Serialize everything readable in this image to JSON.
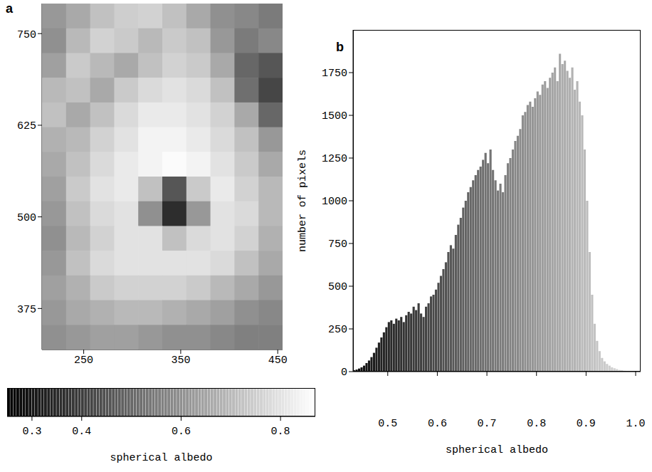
{
  "chart_data": [
    {
      "type": "heatmap",
      "panel": "a",
      "xlim": [
        207,
        455
      ],
      "ylim": [
        319,
        791
      ],
      "xticks": [
        250,
        350,
        450
      ],
      "yticks": [
        375,
        500,
        625,
        750
      ],
      "cells": [
        [
          0.62,
          0.66,
          0.72,
          0.75,
          0.76,
          0.72,
          0.66,
          0.6,
          0.58,
          0.55
        ],
        [
          0.6,
          0.7,
          0.76,
          0.74,
          0.7,
          0.74,
          0.72,
          0.62,
          0.55,
          0.58
        ],
        [
          0.64,
          0.74,
          0.7,
          0.66,
          0.72,
          0.76,
          0.74,
          0.66,
          0.5,
          0.46
        ],
        [
          0.7,
          0.72,
          0.66,
          0.74,
          0.78,
          0.8,
          0.78,
          0.72,
          0.52,
          0.42
        ],
        [
          0.72,
          0.66,
          0.72,
          0.78,
          0.82,
          0.82,
          0.8,
          0.76,
          0.66,
          0.5
        ],
        [
          0.68,
          0.7,
          0.76,
          0.8,
          0.84,
          0.84,
          0.82,
          0.78,
          0.72,
          0.62
        ],
        [
          0.66,
          0.72,
          0.78,
          0.82,
          0.84,
          0.86,
          0.84,
          0.8,
          0.74,
          0.66
        ],
        [
          0.64,
          0.74,
          0.8,
          0.82,
          0.72,
          0.46,
          0.74,
          0.82,
          0.76,
          0.7
        ],
        [
          0.62,
          0.72,
          0.78,
          0.8,
          0.6,
          0.36,
          0.62,
          0.8,
          0.78,
          0.7
        ],
        [
          0.6,
          0.7,
          0.76,
          0.8,
          0.8,
          0.72,
          0.78,
          0.8,
          0.76,
          0.68
        ],
        [
          0.62,
          0.72,
          0.78,
          0.8,
          0.8,
          0.8,
          0.8,
          0.78,
          0.72,
          0.66
        ],
        [
          0.64,
          0.68,
          0.74,
          0.76,
          0.76,
          0.76,
          0.74,
          0.7,
          0.66,
          0.62
        ],
        [
          0.62,
          0.66,
          0.68,
          0.7,
          0.7,
          0.68,
          0.66,
          0.64,
          0.6,
          0.58
        ],
        [
          0.6,
          0.62,
          0.64,
          0.64,
          0.62,
          0.6,
          0.6,
          0.58,
          0.56,
          0.56
        ]
      ],
      "colorbar": {
        "label": "spherical albedo",
        "lim": [
          0.25,
          0.87
        ],
        "ticks": [
          0.3,
          0.4,
          0.6,
          0.8
        ]
      }
    },
    {
      "type": "histogram",
      "panel": "b",
      "xlabel": "spherical albedo",
      "ylabel": "number of pixels",
      "xlim": [
        0.43,
        1.01
      ],
      "ylim": [
        0,
        2000
      ],
      "xticks": [
        0.5,
        0.6,
        0.7,
        0.8,
        0.9,
        {
          "value": 1.0,
          "label": "1.0"
        }
      ],
      "yticks": [
        0,
        250,
        500,
        750,
        1000,
        1250,
        1500,
        1750
      ],
      "bins": [
        0.43,
        0.435,
        0.44,
        0.445,
        0.45,
        0.455,
        0.46,
        0.465,
        0.47,
        0.475,
        0.48,
        0.485,
        0.49,
        0.495,
        0.5,
        0.505,
        0.51,
        0.515,
        0.52,
        0.525,
        0.53,
        0.535,
        0.54,
        0.545,
        0.55,
        0.555,
        0.56,
        0.565,
        0.57,
        0.575,
        0.58,
        0.585,
        0.59,
        0.595,
        0.6,
        0.605,
        0.61,
        0.615,
        0.62,
        0.625,
        0.63,
        0.635,
        0.64,
        0.645,
        0.65,
        0.655,
        0.66,
        0.665,
        0.67,
        0.675,
        0.68,
        0.685,
        0.69,
        0.695,
        0.7,
        0.705,
        0.71,
        0.715,
        0.72,
        0.725,
        0.73,
        0.735,
        0.74,
        0.745,
        0.75,
        0.755,
        0.76,
        0.765,
        0.77,
        0.775,
        0.78,
        0.785,
        0.79,
        0.795,
        0.8,
        0.805,
        0.81,
        0.815,
        0.82,
        0.825,
        0.83,
        0.835,
        0.84,
        0.845,
        0.85,
        0.855,
        0.86,
        0.865,
        0.87,
        0.875,
        0.88,
        0.885,
        0.89,
        0.895,
        0.9,
        0.905,
        0.91,
        0.915,
        0.92,
        0.925,
        0.93,
        0.935,
        0.94,
        0.945,
        0.95,
        0.955,
        0.96,
        0.965,
        0.97,
        0.975,
        0.98,
        0.985,
        0.99,
        0.995,
        1.0,
        1.005,
        1.01
      ],
      "values": [
        8,
        12,
        18,
        25,
        35,
        50,
        65,
        85,
        110,
        140,
        170,
        200,
        230,
        260,
        290,
        300,
        280,
        310,
        300,
        320,
        290,
        330,
        350,
        340,
        380,
        360,
        400,
        340,
        320,
        380,
        400,
        440,
        450,
        480,
        520,
        560,
        600,
        640,
        700,
        740,
        720,
        800,
        860,
        900,
        960,
        1000,
        1050,
        1080,
        1120,
        1150,
        1180,
        1200,
        1240,
        1280,
        1220,
        1300,
        1180,
        1120,
        1060,
        1100,
        1050,
        1150,
        1220,
        1250,
        1300,
        1350,
        1380,
        1420,
        1500,
        1520,
        1560,
        1580,
        1550,
        1600,
        1640,
        1620,
        1680,
        1700,
        1660,
        1720,
        1750,
        1780,
        1700,
        1860,
        1800,
        1820,
        1760,
        1720,
        1780,
        1650,
        1700,
        1580,
        1500,
        1300,
        1000,
        700,
        450,
        280,
        180,
        120,
        80,
        60,
        45,
        35,
        25,
        20,
        15,
        10,
        8,
        5,
        4,
        3,
        2,
        1,
        1,
        0
      ]
    }
  ]
}
